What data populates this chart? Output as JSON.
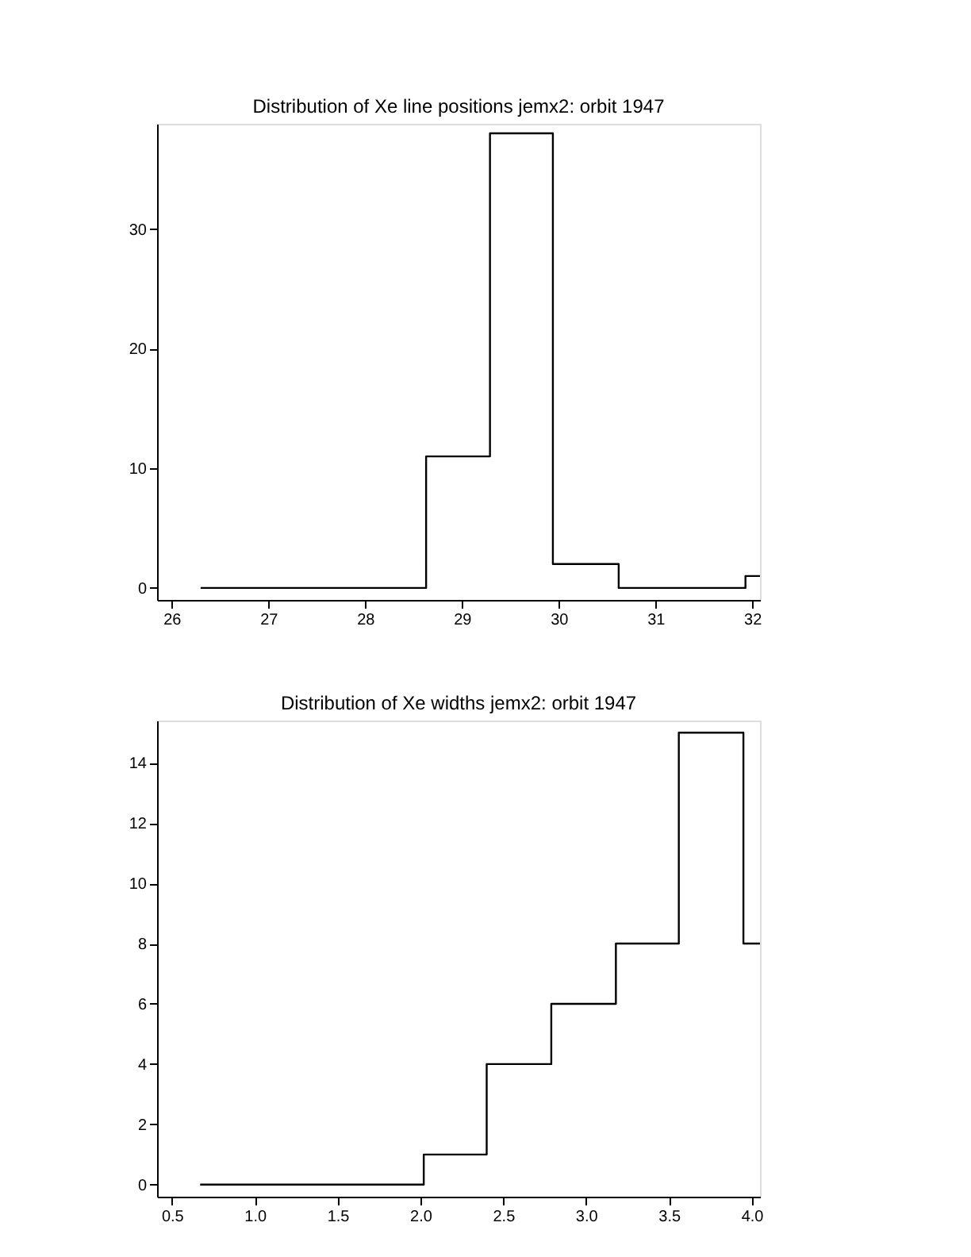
{
  "chart_data": [
    {
      "type": "histogram",
      "title": "Distribution of Xe line positions jemx2: orbit 1947",
      "bins": [
        26.3,
        26.63,
        27.29,
        27.95,
        28.63,
        29.29,
        29.94,
        30.62,
        31.27,
        31.93,
        32.08
      ],
      "values": [
        0,
        0,
        0,
        0,
        11,
        38,
        2,
        0,
        0,
        1
      ],
      "color": "#000000",
      "xlim": [
        25.85,
        32.08
      ],
      "xticks": [
        26,
        27,
        28,
        29,
        30,
        31,
        32
      ],
      "ylim": [
        -1,
        38.8
      ],
      "yticks": [
        0,
        10,
        20,
        30
      ],
      "grid": false
    },
    {
      "type": "histogram",
      "title": "Distribution of Xe widths jemx2: orbit 1947",
      "bins": [
        0.67,
        0.87,
        1.25,
        1.64,
        2.02,
        2.4,
        2.79,
        3.18,
        3.56,
        3.95,
        4.05
      ],
      "values": [
        0,
        0,
        0,
        0,
        1,
        4,
        6,
        8,
        15,
        8
      ],
      "color": "#000000",
      "xlim": [
        0.41,
        4.05
      ],
      "xticks": [
        0.5,
        {
          "value": 1,
          "label": "1.0"
        },
        1.5,
        {
          "value": 2,
          "label": "2.0"
        },
        2.5,
        {
          "value": 3,
          "label": "3.0"
        },
        3.5,
        {
          "value": 4,
          "label": "4.0"
        }
      ],
      "ylim": [
        -0.4,
        15.4
      ],
      "yticks": [
        0,
        2,
        4,
        6,
        8,
        10,
        12,
        14
      ],
      "grid": false
    }
  ]
}
